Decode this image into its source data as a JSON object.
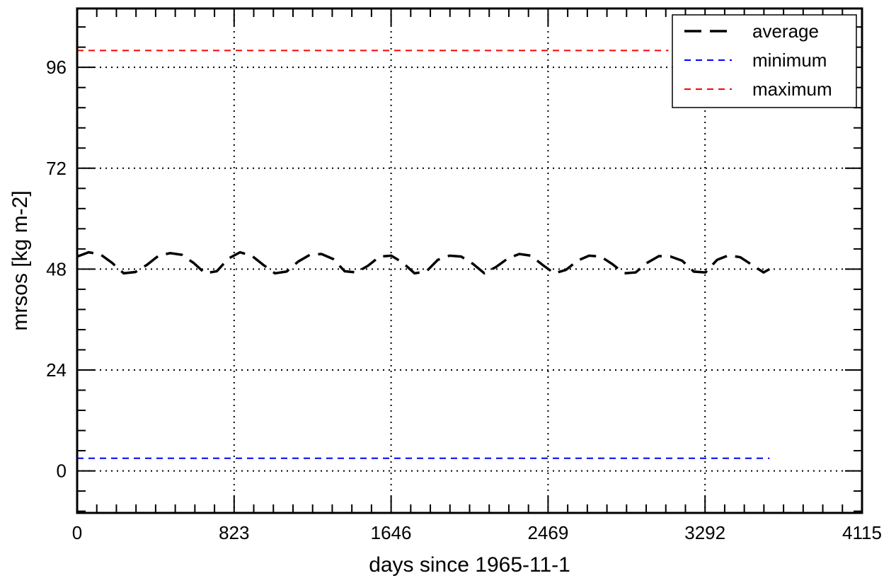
{
  "chart_data": {
    "type": "line",
    "xlabel": "days since 1965-11-1",
    "ylabel": "mrsos [kg m-2]",
    "xlim": [
      0,
      4115
    ],
    "ylim": [
      -10,
      110
    ],
    "x_ticks": [
      0,
      823,
      1646,
      2469,
      3292,
      4115
    ],
    "y_ticks": [
      0,
      24,
      48,
      72,
      96
    ],
    "x_minor_step": 102.875,
    "y_minor_step": 4.8,
    "grid": "dotted",
    "legend_position": "top-right",
    "series": [
      {
        "name": "average",
        "color": "#000000",
        "style": "long-dash",
        "x": [
          0,
          61,
          122,
          183,
          244,
          305,
          366,
          427,
          488,
          549,
          610,
          671,
          732,
          793,
          854,
          915,
          976,
          1037,
          1098,
          1159,
          1220,
          1281,
          1342,
          1403,
          1464,
          1525,
          1586,
          1647,
          1708,
          1769,
          1830,
          1891,
          1952,
          2013,
          2074,
          2135,
          2196,
          2257,
          2318,
          2379,
          2440,
          2501,
          2562,
          2623,
          2684,
          2745,
          2806,
          2867,
          2928,
          2989,
          3050,
          3111,
          3172,
          3233,
          3294,
          3355,
          3416,
          3477,
          3538,
          3599,
          3630
        ],
        "y": [
          51,
          52,
          51.5,
          49.5,
          47,
          47.3,
          49,
          51.2,
          51.8,
          51.4,
          49.5,
          47,
          47.5,
          50.5,
          52,
          51.2,
          49,
          47,
          47.4,
          49.8,
          51.4,
          51.6,
          50.4,
          47.5,
          47.2,
          48.8,
          51,
          51.2,
          49.5,
          47,
          47.4,
          50.2,
          51.2,
          51,
          49.3,
          47,
          48.5,
          50.5,
          51.6,
          51.2,
          49,
          47,
          47.8,
          50,
          51.2,
          51,
          49.2,
          47,
          47.2,
          49.5,
          51.1,
          51,
          50,
          47.4,
          47.2,
          50.2,
          51.3,
          50.8,
          49,
          47.2,
          48
        ]
      },
      {
        "name": "minimum",
        "color": "#0000ff",
        "style": "dash",
        "x": [
          0,
          400,
          900,
          1400,
          1900,
          2400,
          2900,
          3400,
          3630
        ],
        "y": [
          3,
          3,
          3,
          3,
          3,
          3,
          3,
          3,
          3
        ]
      },
      {
        "name": "maximum",
        "color": "#ff0000",
        "style": "dash",
        "x": [
          0,
          3100
        ],
        "y": [
          100,
          100
        ]
      }
    ]
  }
}
